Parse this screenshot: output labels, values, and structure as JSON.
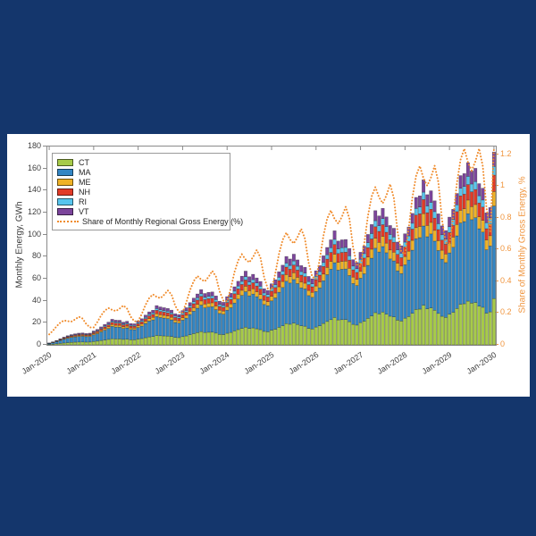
{
  "palette": {
    "background": "#14366C",
    "panel": "#FFFFFF",
    "axis_box": "#8A8A8A",
    "tick_text": "#3D3D3D"
  },
  "chart_data": {
    "type": "bar",
    "stacked": true,
    "title": "",
    "left_axis": {
      "label": "Monthly Energy, GWh",
      "min": 0,
      "max": 180,
      "ticks": [
        0,
        20,
        40,
        60,
        80,
        100,
        120,
        140,
        160,
        180
      ]
    },
    "right_axis": {
      "label": "Share of Monthly Gross Energy, %",
      "min": 0,
      "max": 1.25,
      "ticks": [
        0,
        0.2,
        0.4,
        0.6,
        0.8,
        1,
        1.2
      ],
      "tick_label_format": [
        "0",
        "0.2",
        "0.4",
        "0.6",
        "0.8",
        "1",
        "1.2"
      ],
      "color": "#F0953E"
    },
    "x_axis": {
      "tick_labels": [
        "Jan-2020",
        "Jan-2021",
        "Jan-2022",
        "Jan-2023",
        "Jan-2024",
        "Jan-2025",
        "Jan-2026",
        "Jan-2027",
        "Jan-2028",
        "Jan-2029",
        "Jan-2030"
      ],
      "months_per_tick": 12,
      "n_months": 121
    },
    "series": [
      {
        "name": "CT",
        "color": "#A7CB49",
        "share": 0.24
      },
      {
        "name": "MA",
        "color": "#3386C4",
        "share": 0.48
      },
      {
        "name": "ME",
        "color": "#EFB226",
        "share": 0.075
      },
      {
        "name": "NH",
        "color": "#E23B27",
        "share": 0.085
      },
      {
        "name": "RI",
        "color": "#58C5EE",
        "share": 0.045
      },
      {
        "name": "VT",
        "color": "#7C459C",
        "share": 0.075
      }
    ],
    "series_rule": "stacked segment value = series.share x totals_gwh[month]",
    "totals_gwh": [
      1.7,
      2.7,
      4.0,
      5.5,
      7.0,
      8.3,
      9.3,
      10.0,
      10.6,
      10.8,
      10.3,
      10.6,
      12.6,
      14.0,
      16.3,
      18.5,
      20.6,
      23.2,
      22.4,
      22.3,
      20.6,
      21.4,
      19.3,
      19.1,
      21.8,
      23.7,
      27.0,
      29.9,
      31.4,
      35.6,
      34.4,
      33.7,
      33.0,
      31.5,
      28.2,
      27.4,
      31.1,
      33.7,
      38.3,
      42.4,
      46.2,
      50.1,
      46.6,
      47.6,
      48.0,
      44.4,
      39.6,
      38.6,
      43.7,
      46.8,
      52.7,
      57.7,
      62.3,
      66.9,
      61.8,
      64.0,
      60.7,
      57.5,
      50.9,
      49.3,
      55.4,
      59.1,
      66.3,
      72.3,
      80.2,
      77.9,
      82.3,
      77.1,
      71.9,
      70.4,
      62.1,
      59.9,
      67.2,
      71.9,
      80.8,
      88.4,
      95.3,
      103.5,
      94.2,
      95.3,
      95.6,
      87.4,
      77.3,
      74.7,
      84.0,
      89.5,
      100.2,
      109.2,
      121.8,
      117.0,
      123.9,
      116.1,
      108.3,
      105.8,
      93.3,
      89.9,
      100.8,
      106.9,
      119.3,
      133.8,
      135.2,
      149.8,
      136.3,
      139.8,
      130.7,
      118.9,
      108.0,
      103.7,
      115.9,
      123.0,
      137.4,
      153.6,
      155.4,
      165.3,
      157.8,
      160.2,
      146.3,
      142.1,
      119.8,
      124.6,
      175.0
    ],
    "line": {
      "name": "Share of Monthly Regional Gross Energy (%)",
      "color": "#F08C2D",
      "values": [
        0.066,
        0.089,
        0.117,
        0.14,
        0.154,
        0.149,
        0.147,
        0.16,
        0.177,
        0.166,
        0.131,
        0.11,
        0.11,
        0.144,
        0.185,
        0.216,
        0.232,
        0.22,
        0.213,
        0.228,
        0.248,
        0.228,
        0.177,
        0.148,
        0.149,
        0.195,
        0.252,
        0.295,
        0.318,
        0.302,
        0.294,
        0.315,
        0.343,
        0.317,
        0.247,
        0.206,
        0.204,
        0.267,
        0.345,
        0.402,
        0.434,
        0.412,
        0.4,
        0.428,
        0.466,
        0.43,
        0.335,
        0.279,
        0.275,
        0.357,
        0.459,
        0.532,
        0.57,
        0.538,
        0.52,
        0.553,
        0.598,
        0.55,
        0.425,
        0.353,
        0.347,
        0.449,
        0.573,
        0.662,
        0.707,
        0.663,
        0.639,
        0.678,
        0.731,
        0.669,
        0.517,
        0.427,
        0.418,
        0.54,
        0.689,
        0.795,
        0.847,
        0.794,
        0.764,
        0.808,
        0.87,
        0.796,
        0.614,
        0.506,
        0.495,
        0.638,
        0.813,
        0.935,
        0.994,
        0.93,
        0.892,
        0.942,
        1.013,
        0.925,
        0.712,
        0.586,
        0.572,
        0.734,
        0.93,
        1.065,
        1.127,
        1.049,
        1.003,
        1.054,
        1.129,
        1.026,
        0.786,
        0.645,
        0.627,
        0.804,
        1.019,
        1.168,
        1.236,
        1.15,
        1.099,
        1.156,
        1.237,
        1.125,
        0.862,
        0.707,
        1.24
      ]
    }
  }
}
